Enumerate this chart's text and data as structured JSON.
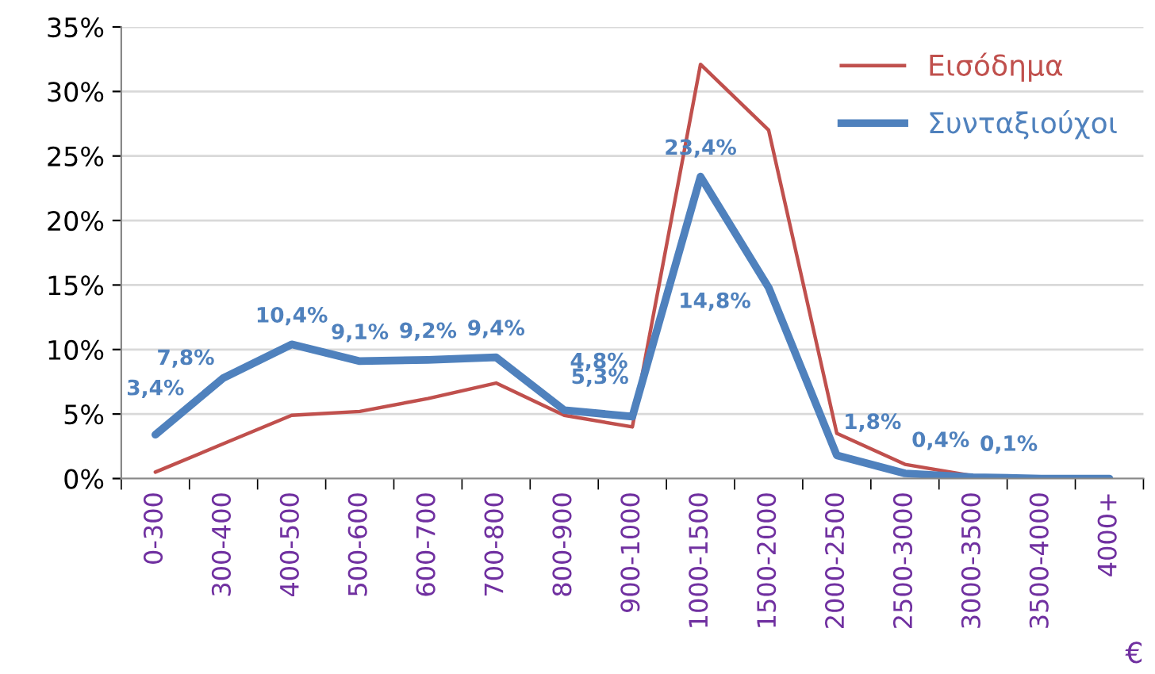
{
  "chart_data": {
    "type": "line",
    "categories": [
      "0-300",
      "300-400",
      "400-500",
      "500-600",
      "600-700",
      "700-800",
      "800-900",
      "900-1000",
      "1000-1500",
      "1500-2000",
      "2000-2500",
      "2500-3000",
      "3000-3500",
      "3500-4000",
      "4000+"
    ],
    "series": [
      {
        "name": "Εισόδημα",
        "color": "#c0504d",
        "values": [
          0.5,
          2.7,
          4.9,
          5.2,
          6.2,
          7.4,
          4.9,
          4.0,
          32.1,
          27,
          3.5,
          1.1,
          0.2,
          0,
          0
        ]
      },
      {
        "name": "Συνταξιούχοι",
        "color": "#4f81bd",
        "values": [
          3.4,
          7.8,
          10.4,
          9.1,
          9.2,
          9.4,
          5.3,
          4.8,
          23.4,
          14.8,
          1.8,
          0.4,
          0.1,
          0,
          0
        ],
        "value_labels": [
          "3,4%",
          "7,8%",
          "10,4%",
          "9,1%",
          "9,2%",
          "9,4%",
          "5,3%",
          "4,8%",
          "23,4%",
          "14,8%",
          "1,8%",
          "0,4%",
          "0,1%",
          null,
          null
        ]
      }
    ],
    "ylim": [
      0,
      35
    ],
    "yticks": [
      {
        "value": 0,
        "label": "0%"
      },
      {
        "value": 5,
        "label": "5%"
      },
      {
        "value": 10,
        "label": "10%"
      },
      {
        "value": 15,
        "label": "15%"
      },
      {
        "value": 20,
        "label": "20%"
      },
      {
        "value": 25,
        "label": "25%"
      },
      {
        "value": 30,
        "label": "30%"
      },
      {
        "value": 35,
        "label": "35%"
      }
    ],
    "xlabel": "€",
    "grid": "y",
    "legend": "top right",
    "marker": "none",
    "line_style": "solid"
  }
}
